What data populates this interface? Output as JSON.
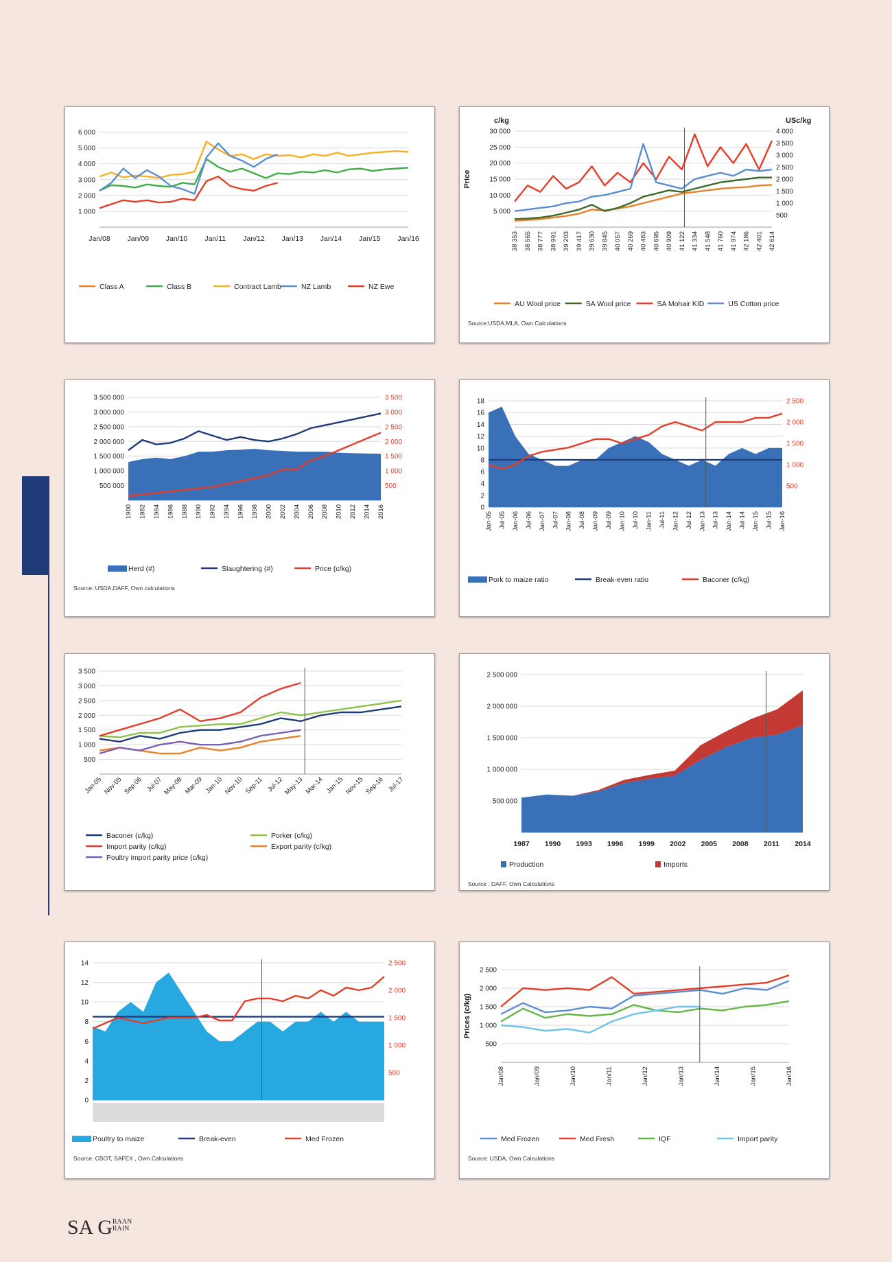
{
  "charts": [
    {
      "id": "c1",
      "type": "line",
      "yticks": [
        "1 000",
        "2 000",
        "3 000",
        "4 000",
        "5 000",
        "6 000"
      ],
      "ylim": [
        0,
        6500
      ],
      "xticks": [
        "Jan/08",
        "Jan/09",
        "Jan/10",
        "Jan/11",
        "Jan/12",
        "Jan/13",
        "Jan/14",
        "Jan/15",
        "Jan/16"
      ],
      "vline_at": 5.4,
      "series": [
        {
          "name": "Class A",
          "color": "#e8812a",
          "values": []
        },
        {
          "name": "Class B",
          "color": "#3fae49",
          "values": [
            2300,
            2650,
            2600,
            2500,
            2700,
            2600,
            2550,
            2800,
            2700,
            4300,
            3800,
            3500,
            3700,
            3400,
            3100,
            3400,
            3350,
            3500,
            3450,
            3600,
            3450,
            3650,
            3700,
            3550,
            3650,
            3700,
            3750
          ]
        },
        {
          "name": "Contract Lamb",
          "color": "#f5b123",
          "values": [
            3200,
            3450,
            3150,
            3250,
            3200,
            3100,
            3300,
            3350,
            3500,
            5400,
            4900,
            4500,
            4600,
            4300,
            4600,
            4500,
            4550,
            4400,
            4600,
            4500,
            4700,
            4500,
            4600,
            4700,
            4750,
            4800,
            4750
          ]
        },
        {
          "name": "NZ Lamb",
          "color": "#5b8ed1",
          "values": [
            2300,
            2800,
            3700,
            3100,
            3600,
            3200,
            2600,
            2400,
            2100,
            4400,
            5300,
            4500,
            4200,
            3800,
            4300,
            4600
          ]
        },
        {
          "name": "NZ  Ewe",
          "color": "#e43d28",
          "values": [
            1200,
            1450,
            1700,
            1600,
            1700,
            1550,
            1600,
            1800,
            1700,
            2900,
            3200,
            2600,
            2400,
            2300,
            2600,
            2800
          ]
        }
      ]
    },
    {
      "id": "c2",
      "type": "line",
      "ylabel": "Price",
      "yunit_left": "c/kg",
      "yunit_right": "USc/kg",
      "yticks_left": [
        "5 000",
        "10 000",
        "15 000",
        "20 000",
        "25 000",
        "30 000"
      ],
      "yticks_right": [
        "500",
        "1 000",
        "1 500",
        "2 000",
        "2 500",
        "3 000",
        "3 500",
        "4 000"
      ],
      "ylim": [
        0,
        30000
      ],
      "xticks": [
        "38 353",
        "38 565",
        "38 777",
        "38 991",
        "39 203",
        "39 417",
        "39 630",
        "39 845",
        "40 057",
        "40 269",
        "40 483",
        "40 695",
        "40 909",
        "41 122",
        "41 334",
        "41 548",
        "41 760",
        "41 974",
        "42 186",
        "42 401",
        "42 614"
      ],
      "vline_at": 0.66,
      "series": [
        {
          "name": "AU Wool price",
          "color": "#e8812a",
          "values": [
            2000,
            2200,
            2500,
            3000,
            3500,
            4200,
            5500,
            5200,
            5800,
            6500,
            7500,
            8500,
            9500,
            10500,
            11000,
            11500,
            12000,
            12300,
            12500,
            13000,
            13200
          ]
        },
        {
          "name": "SA Wool price",
          "color": "#3b6a2a",
          "values": [
            2500,
            2700,
            3000,
            3600,
            4500,
            5500,
            7000,
            5000,
            6000,
            7500,
            9500,
            10500,
            11500,
            11000,
            12000,
            13000,
            14000,
            14500,
            15000,
            15500,
            15500
          ]
        },
        {
          "name": "SA Mohair KID",
          "color": "#e43d28",
          "values": [
            8000,
            13000,
            11000,
            16000,
            12000,
            14000,
            19000,
            13000,
            17000,
            14000,
            20000,
            15000,
            22000,
            18000,
            29000,
            19000,
            25000,
            20000,
            26000,
            18000,
            27000
          ]
        },
        {
          "name": "US Cotton price",
          "color": "#5b8ed1",
          "values": [
            5000,
            5500,
            6000,
            6500,
            7500,
            8000,
            9500,
            10000,
            11000,
            12000,
            26000,
            14000,
            13000,
            12000,
            15000,
            16000,
            17000,
            16000,
            18000,
            17500,
            18000
          ]
        }
      ],
      "source": "Source:USDA,MLA, Own Calculations"
    },
    {
      "id": "c3",
      "type": "area+line",
      "yticks_left": [
        "500 000",
        "1 000 000",
        "1 500 000",
        "2 000 000",
        "2 500 000",
        "3 000 000",
        "3 500 000"
      ],
      "yticks_right": [
        "500",
        "1 000",
        "1 500",
        "2 000",
        "2 500",
        "3 000",
        "3 500"
      ],
      "ylim": [
        0,
        3500000
      ],
      "xticks": [
        "1980",
        "1982",
        "1984",
        "1986",
        "1988",
        "1990",
        "1992",
        "1994",
        "1996",
        "1998",
        "2000",
        "2002",
        "2004",
        "2006",
        "2008",
        "2010",
        "2012",
        "2014",
        "2016"
      ],
      "series": [
        {
          "name": "Herd (#)",
          "color": "#3a70b8",
          "values": [
            1300000,
            1400000,
            1450000,
            1400000,
            1500000,
            1650000,
            1650000,
            1700000,
            1720000,
            1750000,
            1700000,
            1680000,
            1650000,
            1650000,
            1650000,
            1620000,
            1600000,
            1590000,
            1580000
          ]
        },
        {
          "name": "Slaughtering (#)",
          "color": "#1f3c78",
          "values": [
            1700000,
            2050000,
            1900000,
            1950000,
            2100000,
            2350000,
            2200000,
            2050000,
            2150000,
            2050000,
            2000000,
            2100000,
            2250000,
            2450000,
            2550000,
            2650000,
            2750000,
            2850000,
            2950000
          ]
        },
        {
          "name": "Price (c/kg)",
          "color": "#e43d28",
          "values": [
            150,
            200,
            250,
            300,
            350,
            400,
            450,
            550,
            650,
            750,
            850,
            1050,
            1050,
            1350,
            1500,
            1700,
            1900,
            2100,
            2300
          ]
        }
      ],
      "source": "Source: USDA,DAFF, Own calculations"
    },
    {
      "id": "c4",
      "type": "area+line",
      "yticks_left": [
        "0",
        "2",
        "4",
        "6",
        "8",
        "10",
        "12",
        "14",
        "16",
        "18"
      ],
      "yticks_right": [
        "500",
        "1 000",
        "1 500",
        "2 000",
        "2 500"
      ],
      "ylim": [
        0,
        18
      ],
      "xticks": [
        "Jan-05",
        "Jul-05",
        "Jan-06",
        "Jul-06",
        "Jan-07",
        "Jul-07",
        "Jan-08",
        "Jul-08",
        "Jan-09",
        "Jul-09",
        "Jan-10",
        "Jul-10",
        "Jan-11",
        "Jul-11",
        "Jan-12",
        "Jul-12",
        "Jan-13",
        "Jul-13",
        "Jan-14",
        "Jul-14",
        "Jan-15",
        "Jul-15",
        "Jan-16"
      ],
      "vline_at": 0.74,
      "series": [
        {
          "name": "Pork to maize ratio",
          "color": "#3a70b8",
          "values": [
            16,
            17,
            12,
            9,
            8,
            7,
            7,
            8,
            8,
            10,
            11,
            12,
            11,
            9,
            8,
            7,
            8,
            7,
            9,
            10,
            9,
            10,
            10
          ]
        },
        {
          "name": "Break-even  ratio",
          "color": "#1f3c78",
          "values": [
            8,
            8,
            8,
            8,
            8,
            8,
            8,
            8,
            8,
            8,
            8,
            8,
            8,
            8,
            8,
            8,
            8,
            8,
            8,
            8,
            8,
            8,
            8
          ]
        },
        {
          "name": "Baconer (c/kg)",
          "color": "#e43d28",
          "values": [
            1000,
            900,
            1000,
            1200,
            1300,
            1350,
            1400,
            1500,
            1600,
            1600,
            1500,
            1600,
            1700,
            1900,
            2000,
            1900,
            1800,
            2000,
            2000,
            2000,
            2100,
            2100,
            2200
          ]
        }
      ]
    },
    {
      "id": "c5",
      "type": "line",
      "yticks": [
        "500",
        "1 000",
        "1 500",
        "2 000",
        "2 500",
        "3 000",
        "3 500"
      ],
      "ylim": [
        0,
        3500
      ],
      "xticks": [
        "Jan-05",
        "Nov-05",
        "Sep-06",
        "Jul-07",
        "May-08",
        "Mar-09",
        "Jan-10",
        "Nov-10",
        "Sep-11",
        "Jul-12",
        "May-13",
        "Mar-14",
        "Jan-15",
        "Nov-15",
        "Sep-16",
        "Jul-17"
      ],
      "vline_at": 0.68,
      "series": [
        {
          "name": "Baconer (c/kg)",
          "color": "#1f3c78",
          "values": [
            1200,
            1100,
            1300,
            1200,
            1400,
            1500,
            1500,
            1600,
            1700,
            1900,
            1800,
            2000,
            2100,
            2100,
            2200,
            2300
          ]
        },
        {
          "name": "Porker (c/kg)",
          "color": "#8fc24a",
          "values": [
            1300,
            1250,
            1400,
            1400,
            1600,
            1650,
            1700,
            1700,
            1900,
            2100,
            2000,
            2100,
            2200,
            2300,
            2400,
            2500
          ]
        },
        {
          "name": "Import parity (c/kg)",
          "color": "#e43d28",
          "values": [
            1300,
            1500,
            1700,
            1900,
            2200,
            1800,
            1900,
            2100,
            2600,
            2900,
            3100
          ]
        },
        {
          "name": "Export parity (c/kg)",
          "color": "#e8812a",
          "values": [
            800,
            900,
            800,
            700,
            700,
            900,
            800,
            900,
            1100,
            1200,
            1300
          ]
        },
        {
          "name": "Poultry import parity price (c/kg)",
          "color": "#7a5fb0",
          "values": [
            700,
            900,
            800,
            1000,
            1100,
            1000,
            1000,
            1100,
            1300,
            1400,
            1500
          ]
        }
      ]
    },
    {
      "id": "c6",
      "type": "stacked-area",
      "yticks": [
        "500 000",
        "1 000 000",
        "1 500 000",
        "2 000 000",
        "2 500 000"
      ],
      "ylim": [
        0,
        2500000
      ],
      "xticks": [
        "1987",
        "1990",
        "1993",
        "1996",
        "1999",
        "2002",
        "2005",
        "2008",
        "2011",
        "2014"
      ],
      "vline_at": 0.87,
      "series": [
        {
          "name": "Production",
          "color": "#3a70b8",
          "values": [
            550000,
            600000,
            580000,
            650000,
            780000,
            850000,
            900000,
            1150000,
            1350000,
            1500000,
            1550000,
            1700000
          ]
        },
        {
          "name": "Imports",
          "color": "#c23a33",
          "values": [
            0,
            0,
            0,
            20000,
            50000,
            60000,
            80000,
            230000,
            250000,
            300000,
            400000,
            550000
          ]
        }
      ],
      "source": "Source : DAFF, Own Calculations"
    },
    {
      "id": "c7",
      "type": "area+line",
      "yticks_left": [
        "0",
        "2",
        "4",
        "6",
        "8",
        "10",
        "12",
        "14"
      ],
      "yticks_right": [
        "500",
        "1 000",
        "1 500",
        "2 000",
        "2 500"
      ],
      "ylim": [
        0,
        14
      ],
      "vline_at": 0.58,
      "series": [
        {
          "name": "Poultry to maize",
          "color": "#27a8e0",
          "values": [
            7.5,
            7,
            9,
            10,
            9,
            12,
            13,
            11,
            9,
            7,
            6,
            6,
            7,
            8,
            8,
            7,
            8,
            8,
            9,
            8,
            9,
            8,
            8,
            8
          ]
        },
        {
          "name": "Break-even",
          "color": "#1f3c78",
          "values": [
            8.5,
            8.5,
            8.5,
            8.5,
            8.5,
            8.5,
            8.5,
            8.5,
            8.5,
            8.5,
            8.5,
            8.5,
            8.5,
            8.5,
            8.5,
            8.5,
            8.5,
            8.5,
            8.5,
            8.5,
            8.5,
            8.5,
            8.5,
            8.5
          ]
        },
        {
          "name": "Med Frozen",
          "color": "#e43d28",
          "values": [
            1300,
            1400,
            1500,
            1450,
            1400,
            1450,
            1500,
            1500,
            1500,
            1550,
            1450,
            1450,
            1800,
            1850,
            1850,
            1800,
            1900,
            1850,
            2000,
            1900,
            2050,
            2000,
            2050,
            2250
          ]
        }
      ],
      "source": "Source: CBOT, SAFEX , Own Calculations"
    },
    {
      "id": "c8",
      "type": "line",
      "ylabel": "Prices (c/kg)",
      "yticks": [
        "500",
        "1 000",
        "1 500",
        "2 000",
        "2 500"
      ],
      "ylim": [
        0,
        2500
      ],
      "xticks": [
        "Jan/08",
        "Jan/09",
        "Jan/10",
        "Jan/11",
        "Jan/12",
        "Jan/13",
        "Jan/14",
        "Jan/15",
        "Jan/16"
      ],
      "vline_at": 0.69,
      "series": [
        {
          "name": "Med Frozen",
          "color": "#5b8ed1",
          "values": [
            1300,
            1600,
            1350,
            1400,
            1500,
            1450,
            1800,
            1850,
            1900,
            1950,
            1850,
            2000,
            1950,
            2200
          ]
        },
        {
          "name": "Med Fresh",
          "color": "#e43d28",
          "values": [
            1500,
            2000,
            1950,
            2000,
            1950,
            2300,
            1850,
            1900,
            1950,
            2000,
            2050,
            2100,
            2150,
            2350
          ]
        },
        {
          "name": "IQF",
          "color": "#63b546",
          "values": [
            1100,
            1450,
            1200,
            1300,
            1250,
            1300,
            1550,
            1400,
            1350,
            1450,
            1400,
            1500,
            1550,
            1650
          ]
        },
        {
          "name": "Import parity",
          "color": "#6ec3e8",
          "values": [
            1000,
            950,
            850,
            900,
            800,
            1100,
            1300,
            1400,
            1500,
            1500
          ]
        }
      ],
      "source": "Source: USDA, Own Calculations"
    }
  ],
  "footer": {
    "logo_main": "SA G",
    "logo_top": "RAAN",
    "logo_bottom": "RAIN"
  }
}
